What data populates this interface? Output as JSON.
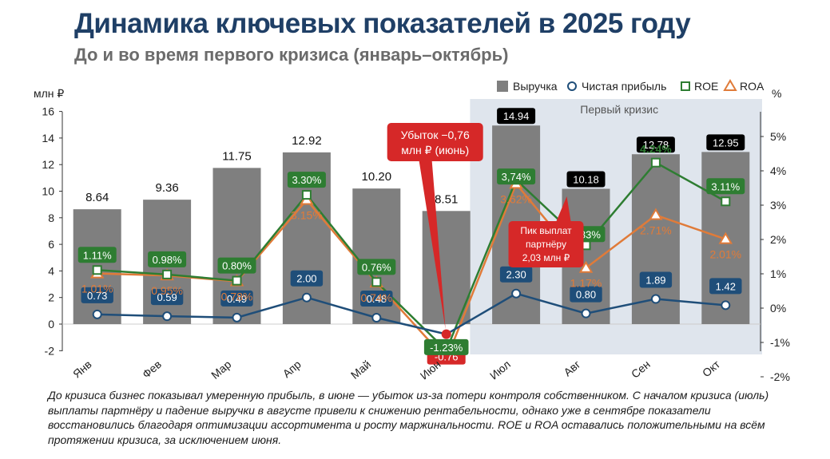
{
  "title": "Динамика ключевых показателей в 2025 году",
  "subtitle": "До и во время первого кризиса (январь–октябрь)",
  "caption": "До кризиса бизнес показывал умеренную прибыль, в июне — убыток из-за потери контроля собственником. С началом кризиса (июль) выплаты партнёру и падение выручки в августе привели к снижению рентабельности, однако уже в сентябре показатели восстановились благодаря оптимизации ассортимента и росту маржинальности. ROE и ROA оставались положительными на всём протяжении кризиса, за исключением июня.",
  "colors": {
    "bar": "#7f7f7f",
    "net_profit": "#1f4e79",
    "roe": "#2e7d32",
    "roa": "#e07b39",
    "crisis_band": "#dfe5ed",
    "annotation": "#d62828",
    "bar_label_highlight": "#000000"
  },
  "chart_data": {
    "type": "bar",
    "categories": [
      "Янв",
      "Фев",
      "Мар",
      "Апр",
      "Май",
      "Июн",
      "Июл",
      "Авг",
      "Сен",
      "Окт"
    ],
    "left_axis": {
      "label": "млн ₽",
      "min": -2,
      "max": 16,
      "ticks": [
        "-2",
        "0",
        "2",
        "4",
        "6",
        "8",
        "10",
        "12",
        "14",
        "16"
      ]
    },
    "right_axis": {
      "label": "%",
      "min": -2,
      "max": 5,
      "ticks": [
        "-2%",
        "-1%",
        "0%",
        "1%",
        "2%",
        "3%",
        "4%",
        "5%"
      ]
    },
    "legend": {
      "placement": "top-right",
      "entries": [
        "Выручка",
        "Чистая прибыль",
        "ROE",
        "ROA"
      ]
    },
    "crisis_band": {
      "label": "Первый кризис",
      "from": "Июл",
      "to": "Окт"
    },
    "series": [
      {
        "name": "Выручка",
        "type": "bar",
        "axis": "left",
        "values": [
          8.64,
          9.36,
          11.75,
          12.92,
          10.2,
          8.51,
          14.94,
          10.18,
          12.78,
          12.95
        ],
        "labels": [
          "8.64",
          "9.36",
          "11.75",
          "12.92",
          "10.20",
          "8.51",
          "14.94",
          "10.18",
          "12.78",
          "12.95"
        ]
      },
      {
        "name": "Чистая прибыль",
        "type": "line",
        "axis": "left",
        "values": [
          0.73,
          0.59,
          0.49,
          2.0,
          0.48,
          -0.76,
          2.3,
          0.8,
          1.89,
          1.42
        ],
        "labels": [
          "0.73",
          "0.59",
          "0.49",
          "2.00",
          "0.48",
          "-0.76",
          "2.30",
          "0.80",
          "1.89",
          "1.42"
        ]
      },
      {
        "name": "ROE",
        "type": "line",
        "axis": "right",
        "values": [
          1.11,
          0.98,
          0.8,
          3.3,
          0.76,
          -1.23,
          3.74,
          1.83,
          4.24,
          3.11
        ],
        "labels": [
          "1.11%",
          "0.98%",
          "0.80%",
          "3.30%",
          "0.76%",
          "-1.23%",
          "3,74%",
          "1.83%",
          "4.24%",
          "3.11%"
        ]
      },
      {
        "name": "ROA",
        "type": "line",
        "axis": "right",
        "values": [
          1.01,
          0.95,
          0.78,
          3.15,
          0.74,
          -1.5,
          3.62,
          1.17,
          2.71,
          2.01
        ],
        "labels": [
          "1.01%",
          "0.95%",
          "0.78%",
          "3.15%",
          "0.74%",
          "",
          "3.62%",
          "1.17%",
          "2.71%",
          "2.01%"
        ]
      }
    ],
    "annotations": [
      {
        "text_lines": [
          "Убыток −0,76",
          "млн ₽ (июнь)"
        ],
        "target": "Июн"
      },
      {
        "text_lines": [
          "Пик выплат",
          "партнёру",
          "2,03 млн ₽"
        ],
        "target": "Авг"
      }
    ]
  }
}
